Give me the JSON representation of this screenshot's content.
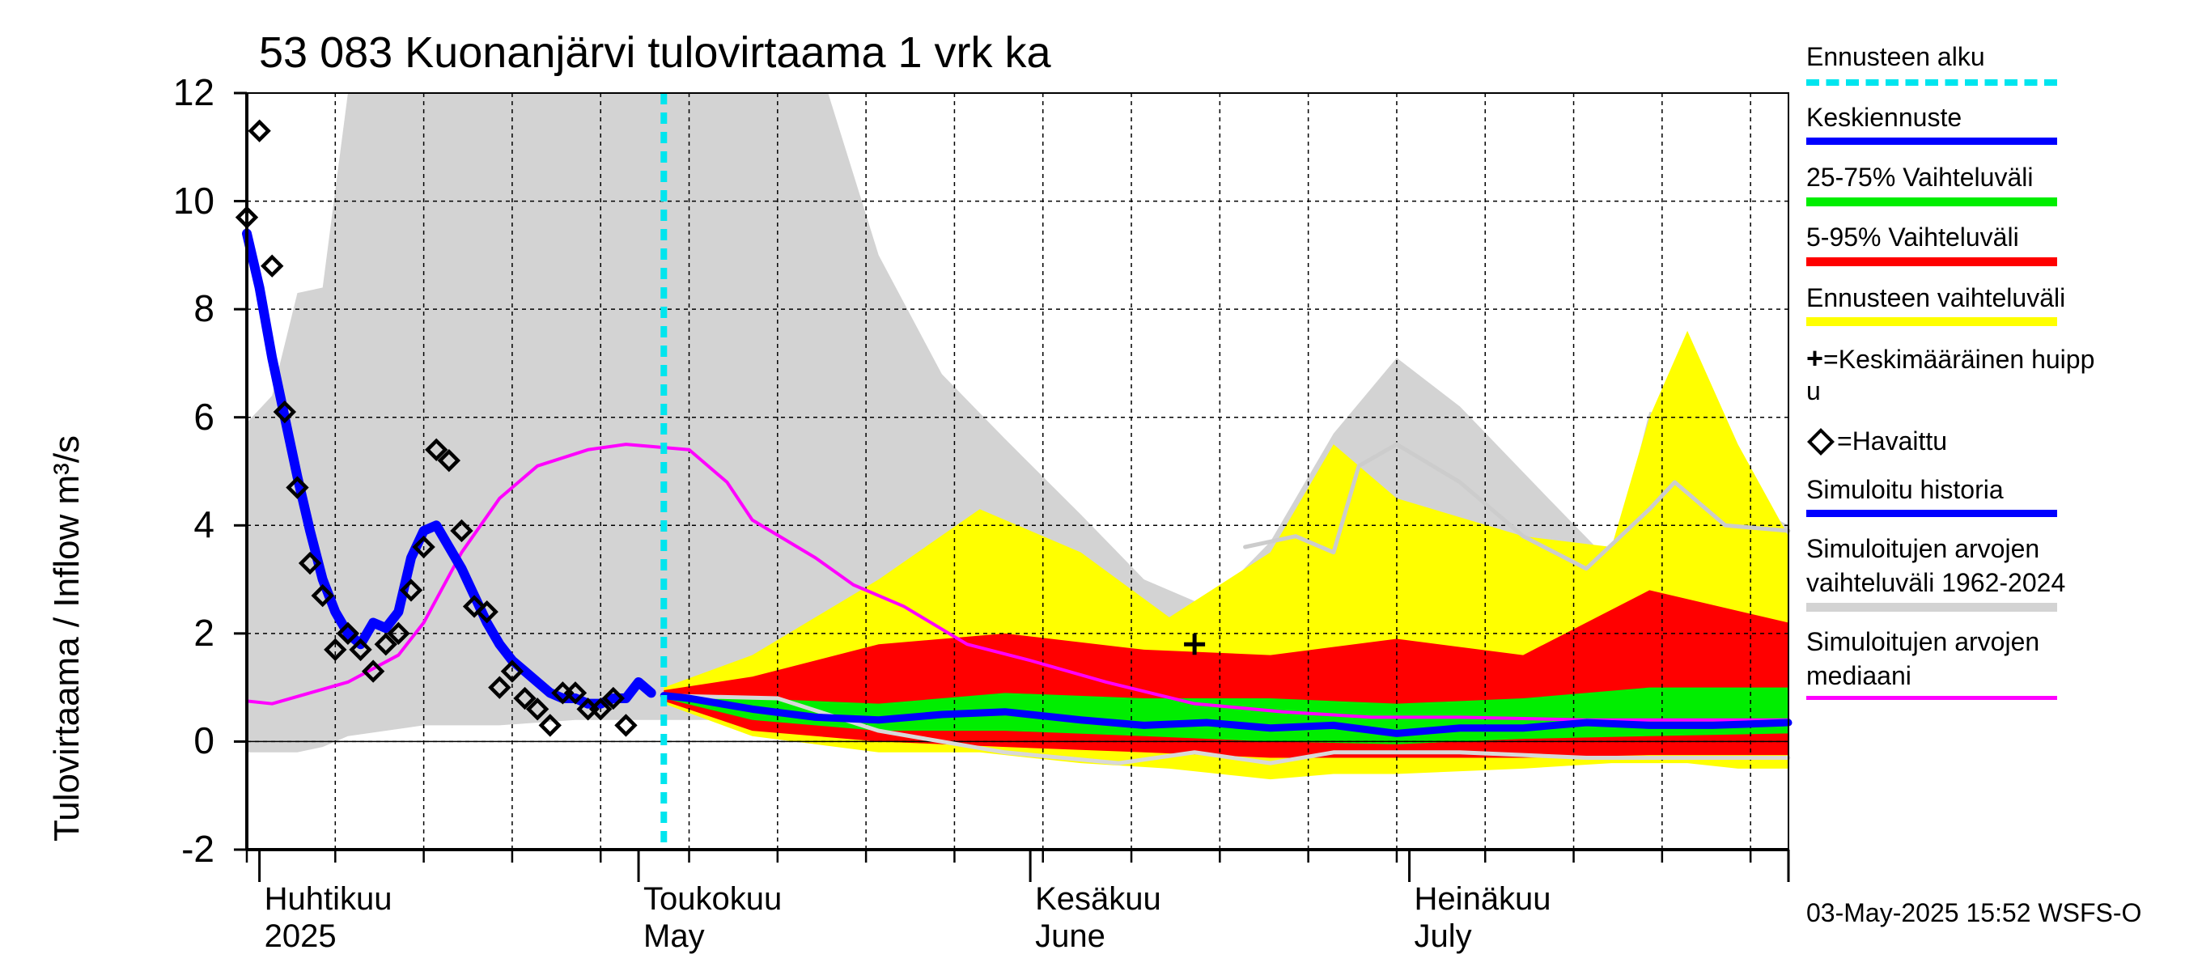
{
  "header": {
    "title": "53 083 Kuonanjärvi tulovirtaama 1 vrk ka",
    "timestamp": "03-May-2025 15:52 WSFS-O"
  },
  "legend": {
    "forecast_start": "Ennusteen alku",
    "mean_forecast": "Keskiennuste",
    "range_25_75": "25-75% Vaihteluväli",
    "range_5_95": "5-95% Vaihteluväli",
    "forecast_range": "Ennusteen vaihteluväli",
    "mean_peak_1": "=Keskimääräinen huipp",
    "mean_peak_2": "u",
    "observed": "=Havaittu",
    "simulated_history": "Simuloitu historia",
    "sim_range_1": "Simuloitujen arvojen",
    "sim_range_2": "vaihteluväli 1962-2024",
    "sim_median_1": "Simuloitujen arvojen",
    "sim_median_2": "mediaani"
  },
  "months": [
    {
      "fi": "Huhtikuu",
      "en": "2025"
    },
    {
      "fi": "Toukokuu",
      "en": "May"
    },
    {
      "fi": "Kesäkuu",
      "en": "June"
    },
    {
      "fi": "Heinäkuu",
      "en": "July"
    }
  ],
  "colors": {
    "forecast_start": "#00e5ee",
    "mean_forecast": "#0000ff",
    "range_25_75": "#00ee00",
    "range_5_95": "#ff0000",
    "forecast_range": "#ffff00",
    "sim_range": "#d3d3d3",
    "sim_median": "#ff00ff",
    "observed": "#000000"
  },
  "chart_data": {
    "type": "line",
    "title": "53 083 Kuonanjärvi tulovirtaama 1 vrk ka",
    "ylabel": "Tulovirtaama / Inflow    m³/s",
    "ylim": [
      -2,
      12
    ],
    "yticks": [
      "-2",
      "0",
      "2",
      "4",
      "6",
      "8",
      "10",
      "12"
    ],
    "x_range": [
      "2025-03-31",
      "2025-07-31"
    ],
    "grid": true,
    "legend_position": "right",
    "forecast_start": "2025-05-03",
    "mean_peak": {
      "x": "2025-06-14",
      "y": 1.8
    },
    "observed": [
      {
        "x": "2025-03-31",
        "y": 9.7
      },
      {
        "x": "2025-04-01",
        "y": 11.3
      },
      {
        "x": "2025-04-02",
        "y": 8.8
      },
      {
        "x": "2025-04-03",
        "y": 6.1
      },
      {
        "x": "2025-04-04",
        "y": 4.7
      },
      {
        "x": "2025-04-05",
        "y": 3.3
      },
      {
        "x": "2025-04-06",
        "y": 2.7
      },
      {
        "x": "2025-04-07",
        "y": 1.7
      },
      {
        "x": "2025-04-08",
        "y": 2.0
      },
      {
        "x": "2025-04-09",
        "y": 1.7
      },
      {
        "x": "2025-04-10",
        "y": 1.3
      },
      {
        "x": "2025-04-11",
        "y": 1.8
      },
      {
        "x": "2025-04-12",
        "y": 2.0
      },
      {
        "x": "2025-04-13",
        "y": 2.8
      },
      {
        "x": "2025-04-14",
        "y": 3.6
      },
      {
        "x": "2025-04-15",
        "y": 5.4
      },
      {
        "x": "2025-04-16",
        "y": 5.2
      },
      {
        "x": "2025-04-17",
        "y": 3.9
      },
      {
        "x": "2025-04-18",
        "y": 2.5
      },
      {
        "x": "2025-04-19",
        "y": 2.4
      },
      {
        "x": "2025-04-20",
        "y": 1.0
      },
      {
        "x": "2025-04-21",
        "y": 1.3
      },
      {
        "x": "2025-04-22",
        "y": 0.8
      },
      {
        "x": "2025-04-23",
        "y": 0.6
      },
      {
        "x": "2025-04-24",
        "y": 0.3
      },
      {
        "x": "2025-04-25",
        "y": 0.9
      },
      {
        "x": "2025-04-26",
        "y": 0.9
      },
      {
        "x": "2025-04-27",
        "y": 0.6
      },
      {
        "x": "2025-04-28",
        "y": 0.6
      },
      {
        "x": "2025-04-29",
        "y": 0.8
      },
      {
        "x": "2025-04-30",
        "y": 0.3
      }
    ],
    "simulated_history": [
      {
        "x": "2025-03-31",
        "y": 9.4
      },
      {
        "x": "2025-04-01",
        "y": 8.4
      },
      {
        "x": "2025-04-02",
        "y": 7.1
      },
      {
        "x": "2025-04-03",
        "y": 6.0
      },
      {
        "x": "2025-04-04",
        "y": 4.9
      },
      {
        "x": "2025-04-05",
        "y": 3.9
      },
      {
        "x": "2025-04-06",
        "y": 3.0
      },
      {
        "x": "2025-04-07",
        "y": 2.4
      },
      {
        "x": "2025-04-08",
        "y": 2.0
      },
      {
        "x": "2025-04-09",
        "y": 1.8
      },
      {
        "x": "2025-04-10",
        "y": 2.2
      },
      {
        "x": "2025-04-11",
        "y": 2.1
      },
      {
        "x": "2025-04-12",
        "y": 2.4
      },
      {
        "x": "2025-04-13",
        "y": 3.4
      },
      {
        "x": "2025-04-14",
        "y": 3.9
      },
      {
        "x": "2025-04-15",
        "y": 4.0
      },
      {
        "x": "2025-04-16",
        "y": 3.6
      },
      {
        "x": "2025-04-17",
        "y": 3.2
      },
      {
        "x": "2025-04-18",
        "y": 2.7
      },
      {
        "x": "2025-04-19",
        "y": 2.2
      },
      {
        "x": "2025-04-20",
        "y": 1.8
      },
      {
        "x": "2025-04-21",
        "y": 1.5
      },
      {
        "x": "2025-04-22",
        "y": 1.3
      },
      {
        "x": "2025-04-23",
        "y": 1.1
      },
      {
        "x": "2025-04-24",
        "y": 0.9
      },
      {
        "x": "2025-04-25",
        "y": 0.8
      },
      {
        "x": "2025-04-26",
        "y": 0.8
      },
      {
        "x": "2025-04-27",
        "y": 0.7
      },
      {
        "x": "2025-04-28",
        "y": 0.7
      },
      {
        "x": "2025-04-29",
        "y": 0.8
      },
      {
        "x": "2025-04-30",
        "y": 0.8
      },
      {
        "x": "2025-05-01",
        "y": 1.1
      },
      {
        "x": "2025-05-02",
        "y": 0.9
      }
    ],
    "mean_forecast": [
      {
        "x": "2025-05-03",
        "y": 0.85
      },
      {
        "x": "2025-05-05",
        "y": 0.8
      },
      {
        "x": "2025-05-10",
        "y": 0.6
      },
      {
        "x": "2025-05-15",
        "y": 0.45
      },
      {
        "x": "2025-05-20",
        "y": 0.4
      },
      {
        "x": "2025-05-25",
        "y": 0.5
      },
      {
        "x": "2025-05-30",
        "y": 0.55
      },
      {
        "x": "2025-06-05",
        "y": 0.4
      },
      {
        "x": "2025-06-10",
        "y": 0.3
      },
      {
        "x": "2025-06-15",
        "y": 0.35
      },
      {
        "x": "2025-06-20",
        "y": 0.25
      },
      {
        "x": "2025-06-25",
        "y": 0.3
      },
      {
        "x": "2025-06-30",
        "y": 0.15
      },
      {
        "x": "2025-07-05",
        "y": 0.25
      },
      {
        "x": "2025-07-10",
        "y": 0.25
      },
      {
        "x": "2025-07-15",
        "y": 0.35
      },
      {
        "x": "2025-07-20",
        "y": 0.3
      },
      {
        "x": "2025-07-25",
        "y": 0.3
      },
      {
        "x": "2025-07-31",
        "y": 0.35
      }
    ],
    "range_25_75": [
      {
        "x": "2025-05-03",
        "lo": 0.8,
        "hi": 0.9
      },
      {
        "x": "2025-05-10",
        "lo": 0.4,
        "hi": 0.8
      },
      {
        "x": "2025-05-20",
        "lo": 0.2,
        "hi": 0.7
      },
      {
        "x": "2025-05-30",
        "lo": 0.2,
        "hi": 0.9
      },
      {
        "x": "2025-06-10",
        "lo": 0.1,
        "hi": 0.8
      },
      {
        "x": "2025-06-20",
        "lo": 0.0,
        "hi": 0.8
      },
      {
        "x": "2025-06-30",
        "lo": -0.05,
        "hi": 0.7
      },
      {
        "x": "2025-07-10",
        "lo": 0.05,
        "hi": 0.8
      },
      {
        "x": "2025-07-20",
        "lo": 0.1,
        "hi": 1.0
      },
      {
        "x": "2025-07-31",
        "lo": 0.15,
        "hi": 1.0
      }
    ],
    "range_5_95": [
      {
        "x": "2025-05-03",
        "lo": 0.75,
        "hi": 0.95
      },
      {
        "x": "2025-05-10",
        "lo": 0.2,
        "hi": 1.2
      },
      {
        "x": "2025-05-20",
        "lo": 0.0,
        "hi": 1.8
      },
      {
        "x": "2025-05-30",
        "lo": -0.1,
        "hi": 2.0
      },
      {
        "x": "2025-06-10",
        "lo": -0.2,
        "hi": 1.7
      },
      {
        "x": "2025-06-20",
        "lo": -0.3,
        "hi": 1.6
      },
      {
        "x": "2025-06-30",
        "lo": -0.3,
        "hi": 1.9
      },
      {
        "x": "2025-07-10",
        "lo": -0.3,
        "hi": 1.6
      },
      {
        "x": "2025-07-20",
        "lo": -0.25,
        "hi": 2.8
      },
      {
        "x": "2025-07-31",
        "lo": -0.25,
        "hi": 2.2
      }
    ],
    "forecast_range": [
      {
        "x": "2025-05-03",
        "lo": 0.7,
        "hi": 1.0
      },
      {
        "x": "2025-05-10",
        "lo": 0.1,
        "hi": 1.6
      },
      {
        "x": "2025-05-20",
        "lo": -0.2,
        "hi": 3.0
      },
      {
        "x": "2025-05-28",
        "lo": -0.2,
        "hi": 4.3
      },
      {
        "x": "2025-06-05",
        "lo": -0.4,
        "hi": 3.5
      },
      {
        "x": "2025-06-12",
        "lo": -0.5,
        "hi": 2.3
      },
      {
        "x": "2025-06-20",
        "lo": -0.7,
        "hi": 3.5
      },
      {
        "x": "2025-06-25",
        "lo": -0.6,
        "hi": 5.5
      },
      {
        "x": "2025-06-30",
        "lo": -0.6,
        "hi": 4.5
      },
      {
        "x": "2025-07-10",
        "lo": -0.5,
        "hi": 3.8
      },
      {
        "x": "2025-07-17",
        "lo": -0.4,
        "hi": 3.6
      },
      {
        "x": "2025-07-20",
        "lo": -0.4,
        "hi": 6.0
      },
      {
        "x": "2025-07-23",
        "lo": -0.4,
        "hi": 7.6
      },
      {
        "x": "2025-07-27",
        "lo": -0.5,
        "hi": 5.5
      },
      {
        "x": "2025-07-31",
        "lo": -0.5,
        "hi": 3.8
      }
    ],
    "sim_range": [
      {
        "x": "2025-03-31",
        "lo": -0.2,
        "hi": 5.9
      },
      {
        "x": "2025-04-02",
        "lo": -0.2,
        "hi": 6.4
      },
      {
        "x": "2025-04-04",
        "lo": -0.2,
        "hi": 8.3
      },
      {
        "x": "2025-04-06",
        "lo": -0.1,
        "hi": 8.4
      },
      {
        "x": "2025-04-08",
        "lo": 0.1,
        "hi": 12.0
      },
      {
        "x": "2025-04-14",
        "lo": 0.3,
        "hi": 12.0
      },
      {
        "x": "2025-04-20",
        "lo": 0.3,
        "hi": 12.0
      },
      {
        "x": "2025-04-26",
        "lo": 0.4,
        "hi": 12.0
      },
      {
        "x": "2025-05-10",
        "lo": 0.4,
        "hi": 12.0
      },
      {
        "x": "2025-05-16",
        "lo": 0.3,
        "hi": 12.0
      },
      {
        "x": "2025-05-20",
        "lo": 0.1,
        "hi": 9.0
      },
      {
        "x": "2025-05-25",
        "lo": 0.0,
        "hi": 6.8
      },
      {
        "x": "2025-05-30",
        "lo": -0.1,
        "hi": 5.6
      },
      {
        "x": "2025-06-05",
        "lo": -0.2,
        "hi": 4.2
      },
      {
        "x": "2025-06-10",
        "lo": -0.3,
        "hi": 3.0
      },
      {
        "x": "2025-06-15",
        "lo": -0.4,
        "hi": 2.5
      },
      {
        "x": "2025-06-20",
        "lo": -0.4,
        "hi": 3.7
      },
      {
        "x": "2025-06-25",
        "lo": -0.3,
        "hi": 5.7
      },
      {
        "x": "2025-06-30",
        "lo": -0.4,
        "hi": 7.1
      },
      {
        "x": "2025-07-05",
        "lo": -0.3,
        "hi": 6.2
      },
      {
        "x": "2025-07-12",
        "lo": -0.3,
        "hi": 4.5
      },
      {
        "x": "2025-07-17",
        "lo": -0.3,
        "hi": 3.3
      },
      {
        "x": "2025-07-20",
        "lo": -0.3,
        "hi": 6.1
      },
      {
        "x": "2025-07-23",
        "lo": -0.3,
        "hi": 6.0
      },
      {
        "x": "2025-07-27",
        "lo": -0.3,
        "hi": 4.5
      },
      {
        "x": "2025-07-31",
        "lo": -0.3,
        "hi": 4.0
      }
    ],
    "sim_range_series_line": [
      {
        "x": "2025-05-03",
        "y": 0.85
      },
      {
        "x": "2025-05-12",
        "y": 0.8
      },
      {
        "x": "2025-05-20",
        "y": 0.2
      },
      {
        "x": "2025-05-30",
        "y": -0.2
      },
      {
        "x": "2025-06-08",
        "y": -0.4
      },
      {
        "x": "2025-06-14",
        "y": -0.2
      },
      {
        "x": "2025-06-20",
        "y": -0.4
      },
      {
        "x": "2025-06-25",
        "y": -0.2
      },
      {
        "x": "2025-07-05",
        "y": -0.2
      },
      {
        "x": "2025-07-15",
        "y": -0.3
      },
      {
        "x": "2025-07-31",
        "y": -0.3
      }
    ],
    "sim_upper_line": [
      {
        "x": "2025-06-18",
        "y": 3.6
      },
      {
        "x": "2025-06-22",
        "y": 3.8
      },
      {
        "x": "2025-06-25",
        "y": 3.5
      },
      {
        "x": "2025-06-27",
        "y": 5.1
      },
      {
        "x": "2025-06-30",
        "y": 5.5
      },
      {
        "x": "2025-07-05",
        "y": 4.8
      },
      {
        "x": "2025-07-10",
        "y": 3.8
      },
      {
        "x": "2025-07-15",
        "y": 3.2
      },
      {
        "x": "2025-07-20",
        "y": 4.3
      },
      {
        "x": "2025-07-22",
        "y": 4.8
      },
      {
        "x": "2025-07-26",
        "y": 4.0
      },
      {
        "x": "2025-07-31",
        "y": 3.9
      }
    ],
    "sim_median": [
      {
        "x": "2025-03-31",
        "y": 0.75
      },
      {
        "x": "2025-04-02",
        "y": 0.7
      },
      {
        "x": "2025-04-05",
        "y": 0.9
      },
      {
        "x": "2025-04-08",
        "y": 1.1
      },
      {
        "x": "2025-04-12",
        "y": 1.6
      },
      {
        "x": "2025-04-14",
        "y": 2.2
      },
      {
        "x": "2025-04-17",
        "y": 3.5
      },
      {
        "x": "2025-04-20",
        "y": 4.5
      },
      {
        "x": "2025-04-23",
        "y": 5.1
      },
      {
        "x": "2025-04-27",
        "y": 5.4
      },
      {
        "x": "2025-04-30",
        "y": 5.5
      },
      {
        "x": "2025-05-05",
        "y": 5.4
      },
      {
        "x": "2025-05-08",
        "y": 4.8
      },
      {
        "x": "2025-05-10",
        "y": 4.1
      },
      {
        "x": "2025-05-15",
        "y": 3.4
      },
      {
        "x": "2025-05-18",
        "y": 2.9
      },
      {
        "x": "2025-05-22",
        "y": 2.5
      },
      {
        "x": "2025-05-27",
        "y": 1.8
      },
      {
        "x": "2025-06-01",
        "y": 1.5
      },
      {
        "x": "2025-06-07",
        "y": 1.1
      },
      {
        "x": "2025-06-14",
        "y": 0.7
      },
      {
        "x": "2025-06-21",
        "y": 0.55
      },
      {
        "x": "2025-06-28",
        "y": 0.45
      },
      {
        "x": "2025-07-05",
        "y": 0.45
      },
      {
        "x": "2025-07-15",
        "y": 0.4
      },
      {
        "x": "2025-07-31",
        "y": 0.4
      }
    ]
  }
}
